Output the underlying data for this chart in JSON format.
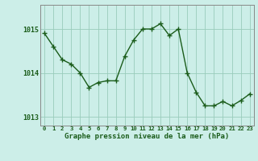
{
  "x": [
    0,
    1,
    2,
    3,
    4,
    5,
    6,
    7,
    8,
    9,
    10,
    11,
    12,
    13,
    14,
    15,
    16,
    17,
    18,
    19,
    20,
    21,
    22,
    23
  ],
  "y": [
    1014.9,
    1014.6,
    1014.3,
    1014.2,
    1014.0,
    1013.67,
    1013.78,
    1013.82,
    1013.82,
    1014.38,
    1014.75,
    1015.0,
    1015.0,
    1015.12,
    1014.85,
    1015.0,
    1014.0,
    1013.56,
    1013.25,
    1013.25,
    1013.35,
    1013.25,
    1013.37,
    1013.52
  ],
  "line_color": "#1a5c1a",
  "marker_color": "#1a5c1a",
  "bg_color": "#cceee8",
  "grid_color": "#99ccbb",
  "axis_label_color": "#1a5c1a",
  "xlabel": "Graphe pression niveau de la mer (hPa)",
  "ylim": [
    1012.8,
    1015.55
  ],
  "yticks": [
    1013,
    1014,
    1015
  ],
  "xtick_labels": [
    "0",
    "1",
    "2",
    "3",
    "4",
    "5",
    "6",
    "7",
    "8",
    "9",
    "10",
    "11",
    "12",
    "13",
    "14",
    "15",
    "16",
    "17",
    "18",
    "19",
    "20",
    "21",
    "22",
    "23"
  ],
  "line_width": 1.0,
  "marker_size": 2.5
}
